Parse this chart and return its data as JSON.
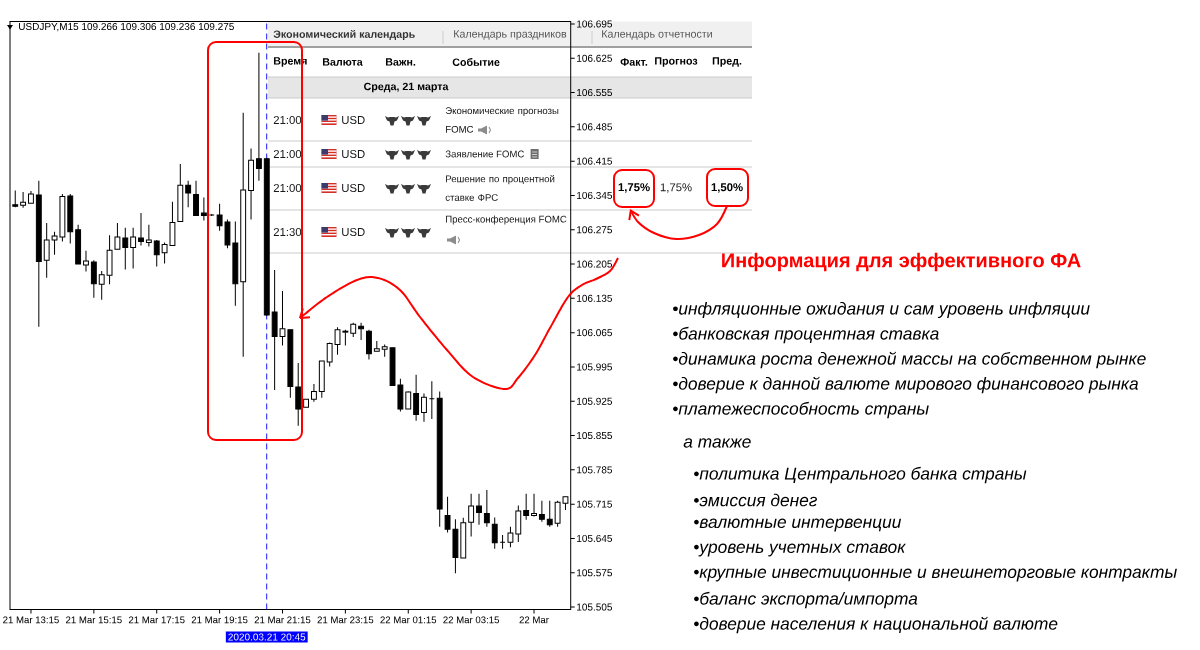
{
  "chart_data": [
    {
      "type": "candlestick",
      "title": "USDJPY,M15 109.266 109.306 109.236 109.275",
      "color": "#000000",
      "x": [
        "2020-03-21T12:45",
        "2020-03-21T13:00",
        "2020-03-21T13:15",
        "2020-03-21T13:30",
        "2020-03-21T13:45",
        "2020-03-21T14:00",
        "2020-03-21T14:15",
        "2020-03-21T14:30",
        "2020-03-21T14:45",
        "2020-03-21T15:00",
        "2020-03-21T15:15",
        "2020-03-21T15:30",
        "2020-03-21T15:45",
        "2020-03-21T16:00",
        "2020-03-21T16:15",
        "2020-03-21T16:30",
        "2020-03-21T16:45",
        "2020-03-21T17:00",
        "2020-03-21T17:15",
        "2020-03-21T17:30",
        "2020-03-21T17:45",
        "2020-03-21T18:00",
        "2020-03-21T18:15",
        "2020-03-21T18:30",
        "2020-03-21T18:45",
        "2020-03-21T19:00",
        "2020-03-21T19:15",
        "2020-03-21T19:30",
        "2020-03-21T19:45",
        "2020-03-21T20:00",
        "2020-03-21T20:15",
        "2020-03-21T20:30",
        "2020-03-21T20:45",
        "2020-03-21T21:00",
        "2020-03-21T21:15",
        "2020-03-21T21:30",
        "2020-03-21T21:45",
        "2020-03-21T22:00",
        "2020-03-21T22:15",
        "2020-03-21T22:30",
        "2020-03-21T22:45",
        "2020-03-21T23:00",
        "2020-03-21T23:15",
        "2020-03-21T23:30",
        "2020-03-21T23:45",
        "2020-03-22T00:00",
        "2020-03-22T00:15",
        "2020-03-22T00:30",
        "2020-03-22T00:45",
        "2020-03-22T01:00",
        "2020-03-22T01:15",
        "2020-03-22T01:30",
        "2020-03-22T01:45",
        "2020-03-22T02:00",
        "2020-03-22T02:15",
        "2020-03-22T02:30",
        "2020-03-22T02:45",
        "2020-03-22T03:00",
        "2020-03-22T03:15",
        "2020-03-22T03:30",
        "2020-03-22T03:45",
        "2020-03-22T04:00",
        "2020-03-22T04:15",
        "2020-03-22T04:30",
        "2020-03-22T04:45",
        "2020-03-22T05:00",
        "2020-03-22T05:15",
        "2020-03-22T05:30",
        "2020-03-22T05:45",
        "2020-03-22T06:00",
        "2020-03-22T06:15"
      ],
      "ohlc": [
        [
          106.326,
          106.355,
          106.321,
          106.323
        ],
        [
          106.325,
          106.352,
          106.32,
          106.331
        ],
        [
          106.329,
          106.354,
          106.329,
          106.348
        ],
        [
          106.346,
          106.375,
          106.077,
          106.21
        ],
        [
          106.213,
          106.289,
          106.177,
          106.254
        ],
        [
          106.254,
          106.271,
          106.224,
          106.262
        ],
        [
          106.26,
          106.348,
          106.251,
          106.343
        ],
        [
          106.344,
          106.348,
          106.247,
          106.271
        ],
        [
          106.275,
          106.285,
          106.205,
          106.205
        ],
        [
          106.203,
          106.232,
          106.19,
          106.211
        ],
        [
          106.209,
          106.213,
          106.136,
          106.165
        ],
        [
          106.164,
          106.191,
          106.132,
          106.183
        ],
        [
          106.182,
          106.264,
          106.164,
          106.233
        ],
        [
          106.235,
          106.289,
          106.235,
          106.26
        ],
        [
          106.258,
          106.279,
          106.194,
          106.239
        ],
        [
          106.239,
          106.279,
          106.196,
          106.26
        ],
        [
          106.258,
          106.309,
          106.243,
          106.251
        ],
        [
          106.249,
          106.285,
          106.241,
          106.254
        ],
        [
          106.252,
          106.254,
          106.2,
          106.224
        ],
        [
          106.228,
          106.249,
          106.206,
          106.245
        ],
        [
          106.243,
          106.332,
          106.243,
          106.29
        ],
        [
          106.292,
          106.409,
          106.292,
          106.366
        ],
        [
          106.366,
          106.375,
          106.321,
          106.35
        ],
        [
          106.347,
          106.375,
          106.304,
          106.304
        ],
        [
          106.309,
          106.341,
          106.294,
          106.304
        ],
        [
          106.305,
          106.307,
          106.303,
          106.305
        ],
        [
          106.305,
          106.328,
          106.273,
          106.283
        ],
        [
          106.291,
          106.296,
          106.237,
          106.244
        ],
        [
          106.248,
          106.292,
          106.12,
          106.165
        ],
        [
          106.169,
          106.514,
          106.016,
          106.356
        ],
        [
          106.355,
          106.441,
          106.296,
          106.417
        ],
        [
          106.42,
          106.636,
          106.375,
          106.4
        ],
        [
          106.42,
          106.422,
          106.099,
          106.101
        ],
        [
          106.107,
          106.193,
          105.948,
          106.057
        ],
        [
          106.057,
          106.15,
          106.039,
          106.073
        ],
        [
          106.071,
          106.071,
          105.932,
          105.955
        ],
        [
          105.954,
          106.003,
          105.875,
          105.909
        ],
        [
          105.913,
          105.929,
          105.913,
          105.929
        ],
        [
          105.929,
          105.96,
          105.924,
          105.945
        ],
        [
          105.945,
          106.007,
          105.932,
          106.007
        ],
        [
          106.005,
          106.045,
          105.996,
          106.043
        ],
        [
          106.041,
          106.076,
          106.02,
          106.071
        ],
        [
          106.066,
          106.071,
          106.039,
          106.068
        ],
        [
          106.064,
          106.085,
          106.056,
          106.082
        ],
        [
          106.078,
          106.085,
          106.05,
          106.073
        ],
        [
          106.068,
          106.071,
          106.01,
          106.022
        ],
        [
          106.027,
          106.048,
          106.027,
          106.032
        ],
        [
          106.031,
          106.041,
          106.016,
          106.036
        ],
        [
          106.034,
          106.034,
          105.957,
          105.957
        ],
        [
          105.958,
          105.971,
          105.904,
          105.909
        ],
        [
          105.909,
          105.945,
          105.909,
          105.944
        ],
        [
          105.941,
          105.979,
          105.885,
          105.898
        ],
        [
          105.902,
          105.941,
          105.883,
          105.933
        ],
        [
          105.93,
          105.966,
          105.889,
          105.93
        ],
        [
          105.931,
          105.945,
          105.669,
          105.705
        ],
        [
          105.692,
          105.73,
          105.657,
          105.664
        ],
        [
          105.664,
          105.684,
          105.574,
          105.606
        ],
        [
          105.605,
          105.687,
          105.605,
          105.677
        ],
        [
          105.678,
          105.736,
          105.649,
          105.711
        ],
        [
          105.711,
          105.736,
          105.673,
          105.698
        ],
        [
          105.696,
          105.744,
          105.669,
          105.677
        ],
        [
          105.674,
          105.688,
          105.624,
          105.636
        ],
        [
          105.637,
          105.652,
          105.624,
          105.637
        ],
        [
          105.637,
          105.669,
          105.627,
          105.656
        ],
        [
          105.654,
          105.712,
          105.638,
          105.701
        ],
        [
          105.702,
          105.736,
          105.683,
          105.692
        ],
        [
          105.692,
          105.736,
          105.69,
          105.696
        ],
        [
          105.694,
          105.722,
          105.679,
          105.684
        ],
        [
          105.684,
          105.722,
          105.669,
          105.673
        ],
        [
          105.676,
          105.722,
          105.669,
          105.719
        ],
        [
          105.717,
          105.73,
          105.703,
          105.73
        ]
      ],
      "xlim": [
        "2020-03-21T12:35",
        "2020-03-22T06:25"
      ],
      "xticks": [
        {
          "value": "2020-03-21T13:15",
          "label": "21 Mar 13:15"
        },
        {
          "value": "2020-03-21T15:15",
          "label": "21 Mar 15:15"
        },
        {
          "value": "2020-03-21T17:15",
          "label": "21 Mar 17:15"
        },
        {
          "value": "2020-03-21T19:15",
          "label": "21 Mar 19:15"
        },
        {
          "value": "2020-03-21T21:15",
          "label": "21 Mar 21:15"
        },
        {
          "value": "2020-03-21T23:15",
          "label": "21 Mar 23:15"
        },
        {
          "value": "2020-03-22T01:15",
          "label": "22 Mar 01:15"
        },
        {
          "value": "2020-03-22T03:15",
          "label": "22 Mar 03:15"
        },
        {
          "value": "2020-03-22T05:15",
          "label": "22 Mar"
        }
      ],
      "ylim": [
        105.5,
        106.7
      ],
      "yticks": [
        105.505,
        105.575,
        105.645,
        105.715,
        105.785,
        105.855,
        105.925,
        105.995,
        106.065,
        106.135,
        106.205,
        106.275,
        106.345,
        106.415,
        106.485,
        106.555,
        106.625,
        106.695
      ],
      "ref_lines": [
        {
          "axis": "x",
          "value": "2020-03-21T20:45",
          "label": "2020.03.21 20:45",
          "color": "#0000ff",
          "line_style": "dashed"
        }
      ]
    },
    {
      "type": "other",
      "annotations": [
        "Экономический календарь",
        "Календарь праздников",
        "Календарь отчетности",
        "Время",
        "Валюта",
        "Важн.",
        "Событие",
        "Факт.",
        "Прогноз",
        "Пред.",
        "Среда, 21 марта",
        "21:00",
        "USD",
        "Экономические прогнозы FOMC",
        "21:00",
        "USD",
        "Заявление FOMC",
        "21:00",
        "USD",
        "Решение по процентной ставке ФРС",
        "1,75%",
        "1,75%",
        "1,50%",
        "21:30",
        "USD",
        "Пресс-конференция FOMC"
      ]
    },
    {
      "type": "other",
      "title": "Информация для эффективного ФА",
      "annotations": [
        "•инфляционные ожидания и сам уровень инфляции",
        "•банковская процентная ставка",
        "•динамика роста денежной массы на собственном рынке",
        "•доверие к данной валюте мирового финансового рынка",
        "•платежеспособность страны",
        "а также",
        "•политика Центрального банка страны",
        "•эмиссия денег",
        "•валютные интервенции",
        "•уровень учетных ставок",
        "•крупные инвестиционные и внешнеторговые контракты",
        "•баланс экспорта/импорта",
        "•доверие населения к национальной валюте"
      ]
    }
  ]
}
